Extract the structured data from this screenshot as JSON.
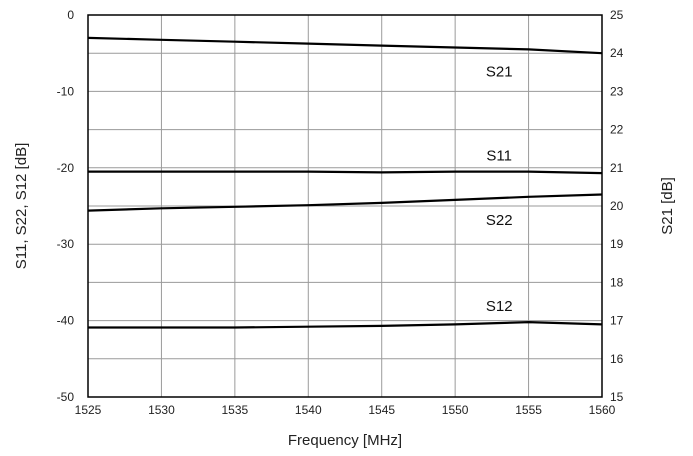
{
  "chart_data": {
    "type": "line",
    "xlabel": "Frequency [MHz]",
    "ylabel_left": "S11, S22, S12 [dB]",
    "ylabel_right": "S21 [dB]",
    "xlim": [
      1525,
      1560
    ],
    "ylim_left": [
      -50,
      0
    ],
    "ylim_right": [
      15,
      25
    ],
    "x_ticks": [
      1525,
      1530,
      1535,
      1540,
      1545,
      1550,
      1555,
      1560
    ],
    "x_tick_labels": [
      "1525",
      "1530",
      "1535",
      "1540",
      "1545",
      "1550",
      "1555",
      "1560"
    ],
    "y_left_ticks": [
      0,
      -10,
      -20,
      -30,
      -40,
      -50
    ],
    "y_left_tick_labels": [
      "0",
      "-10",
      "-20",
      "-30",
      "-40",
      "-50"
    ],
    "y_right_ticks": [
      25,
      24,
      23,
      22,
      21,
      20,
      19,
      18,
      17,
      16,
      15
    ],
    "y_right_tick_labels": [
      "25",
      "24",
      "23",
      "22",
      "21",
      "20",
      "19",
      "18",
      "17",
      "16",
      "15"
    ],
    "grid": true,
    "series": [
      {
        "name": "S21",
        "axis": "right",
        "x": [
          1525,
          1530,
          1535,
          1540,
          1545,
          1550,
          1555,
          1560
        ],
        "y": [
          24.4,
          24.35,
          24.3,
          24.25,
          24.2,
          24.15,
          24.1,
          24.0
        ]
      },
      {
        "name": "S11",
        "axis": "left",
        "x": [
          1525,
          1530,
          1535,
          1540,
          1545,
          1550,
          1555,
          1560
        ],
        "y": [
          -20.5,
          -20.5,
          -20.5,
          -20.5,
          -20.6,
          -20.5,
          -20.5,
          -20.7
        ]
      },
      {
        "name": "S22",
        "axis": "left",
        "x": [
          1525,
          1530,
          1535,
          1540,
          1545,
          1550,
          1555,
          1560
        ],
        "y": [
          -25.6,
          -25.3,
          -25.1,
          -24.9,
          -24.6,
          -24.2,
          -23.8,
          -23.5
        ]
      },
      {
        "name": "S12",
        "axis": "left",
        "x": [
          1525,
          1530,
          1535,
          1540,
          1545,
          1550,
          1555,
          1560
        ],
        "y": [
          -40.9,
          -40.9,
          -40.9,
          -40.8,
          -40.7,
          -40.5,
          -40.2,
          -40.5
        ]
      }
    ]
  }
}
